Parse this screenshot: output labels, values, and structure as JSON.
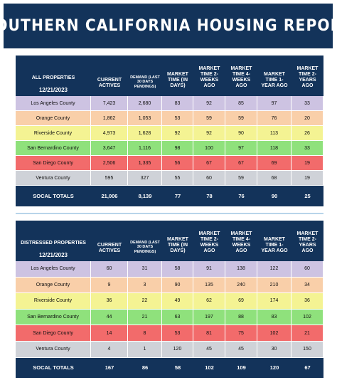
{
  "title": "SOUTHERN CALIFORNIA HOUSING REPORT",
  "tables": [
    {
      "label": "ALL PROPERTIES",
      "date": "12/21/2023",
      "columns": [
        "CURRENT ACTIVES",
        "DEMAND (LAST 30 DAYS PENDINGS)",
        "MARKET TIME (IN DAYS)",
        "MARKET TIME 2-WEEKS AGO",
        "MARKET TIME 4-WEEKS AGO",
        "MARKET TIME 1-YEAR AGO",
        "MARKET TIME 2-YEARS AGO"
      ],
      "rows": [
        {
          "name": "Los Angeles County",
          "values": [
            "7,423",
            "2,680",
            "83",
            "92",
            "85",
            "97",
            "33"
          ]
        },
        {
          "name": "Orange County",
          "values": [
            "1,862",
            "1,053",
            "53",
            "59",
            "59",
            "76",
            "20"
          ]
        },
        {
          "name": "Riverside County",
          "values": [
            "4,973",
            "1,628",
            "92",
            "92",
            "90",
            "113",
            "26"
          ]
        },
        {
          "name": "San Bernardino County",
          "values": [
            "3,647",
            "1,116",
            "98",
            "100",
            "97",
            "118",
            "33"
          ]
        },
        {
          "name": "San Diego County",
          "values": [
            "2,506",
            "1,335",
            "56",
            "67",
            "67",
            "69",
            "19"
          ]
        },
        {
          "name": "Ventura County",
          "values": [
            "595",
            "327",
            "55",
            "60",
            "59",
            "68",
            "19"
          ]
        }
      ],
      "totals": {
        "name": "SOCAL TOTALS",
        "values": [
          "21,006",
          "8,139",
          "77",
          "78",
          "76",
          "90",
          "25"
        ]
      }
    },
    {
      "label": "DISTRESSED PROPERTIES",
      "date": "12/21/2023",
      "columns": [
        "CURRENT ACTIVES",
        "DEMAND (LAST 30 DAYS PENDINGS)",
        "MARKET TIME (IN DAYS)",
        "MARKET TIME 2-WEEKS AGO",
        "MARKET TIME 4-WEEKS AGO",
        "MARKET TIME 1-YEAR AGO",
        "MARKET TIME 2-YEARS AGO"
      ],
      "rows": [
        {
          "name": "Los Angeles County",
          "values": [
            "60",
            "31",
            "58",
            "91",
            "138",
            "122",
            "60"
          ]
        },
        {
          "name": "Orange County",
          "values": [
            "9",
            "3",
            "90",
            "135",
            "240",
            "210",
            "34"
          ]
        },
        {
          "name": "Riverside County",
          "values": [
            "36",
            "22",
            "49",
            "62",
            "69",
            "174",
            "36"
          ]
        },
        {
          "name": "San Bernardino County",
          "values": [
            "44",
            "21",
            "63",
            "197",
            "88",
            "83",
            "102"
          ]
        },
        {
          "name": "San Diego County",
          "values": [
            "14",
            "8",
            "53",
            "81",
            "75",
            "102",
            "21"
          ]
        },
        {
          "name": "Ventura County",
          "values": [
            "4",
            "1",
            "120",
            "45",
            "45",
            "30",
            "150"
          ]
        }
      ],
      "totals": {
        "name": "SOCAL TOTALS",
        "values": [
          "167",
          "86",
          "58",
          "102",
          "109",
          "120",
          "67"
        ]
      }
    }
  ]
}
